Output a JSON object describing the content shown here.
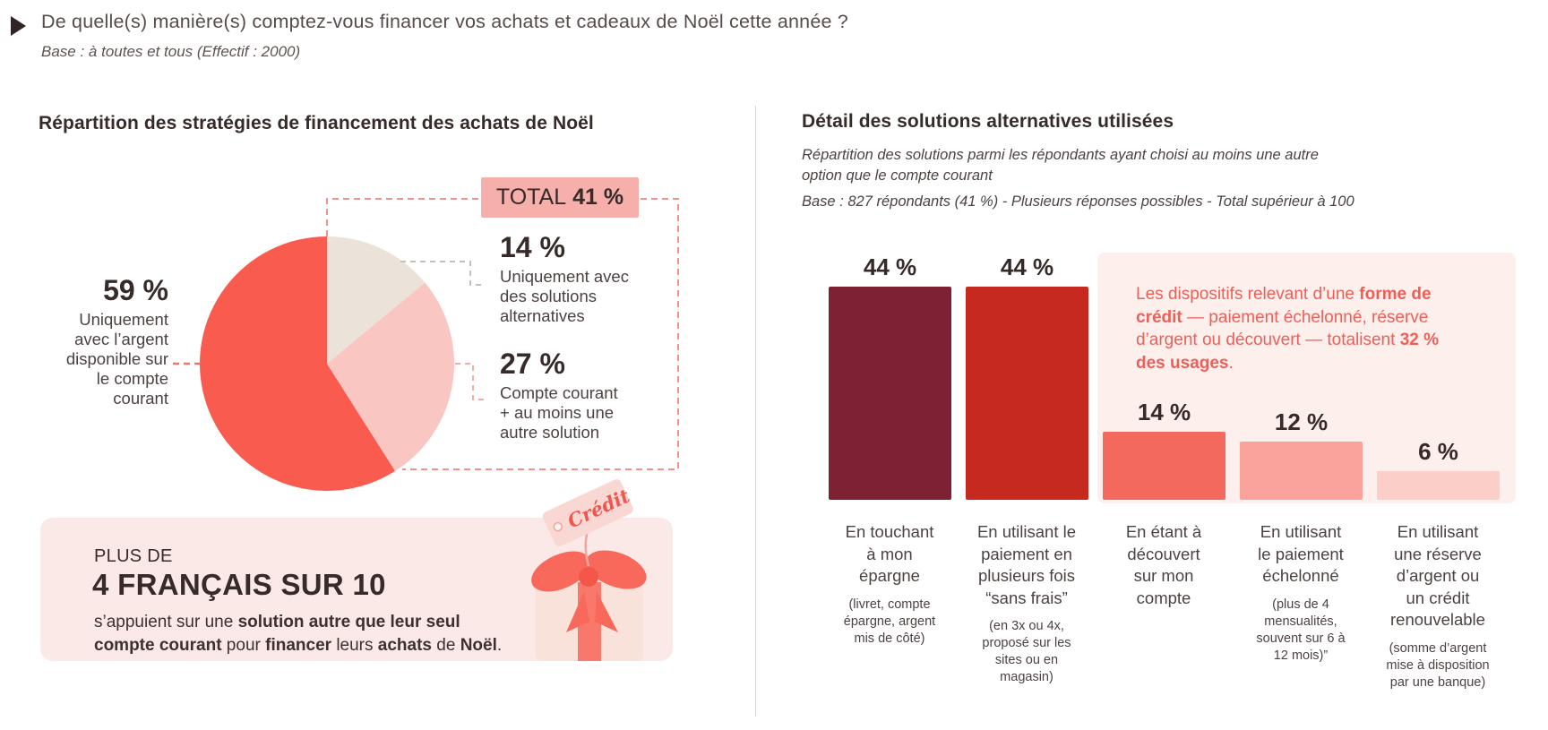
{
  "header": {
    "question": "De quelle(s) manière(s) comptez-vous financer vos achats et cadeaux de Noël cette année ?",
    "base": "Base : à toutes et tous (Effectif : 2000)"
  },
  "left_panel": {
    "title": "Répartition des stratégies de financement des achats de Noël",
    "total_label": "TOTAL",
    "total_value": "41 %",
    "slices": [
      {
        "value": "59 %",
        "label": "Uniquement\navec l’argent\ndisponible sur\nle compte\ncourant"
      },
      {
        "value": "14 %",
        "label": "Uniquement avec\ndes solutions\nalternatives"
      },
      {
        "value": "27 %",
        "label": "Compte courant\n+ au moins une\nautre solution"
      }
    ],
    "highlight": {
      "line1": "PLUS DE",
      "line2": "4 FRANÇAIS SUR 10",
      "body": [
        {
          "t": "s’appuient sur une "
        },
        {
          "t": "solution autre que leur seul\ncompte courant",
          "b": true
        },
        {
          "t": " pour "
        },
        {
          "t": "financer",
          "b": true
        },
        {
          "t": " leurs "
        },
        {
          "t": "achats",
          "b": true
        },
        {
          "t": " de "
        },
        {
          "t": "Noël",
          "b": true
        },
        {
          "t": "."
        }
      ]
    },
    "gift_tag": "Crédit"
  },
  "right_panel": {
    "title": "Détail des solutions alternatives utilisées",
    "subtitle": "Répartition des solutions parmi les répondants ayant choisi au moins une autre\noption que le compte courant",
    "base": "Base : 827 répondants (41 %) - Plusieurs réponses possibles - Total supérieur à 100",
    "callout": [
      {
        "t": "Les dispositifs relevant d’une "
      },
      {
        "t": "forme de\ncrédit",
        "b": true
      },
      {
        "t": " — paiement échelonné, réserve\nd’argent ou découvert — totalisent "
      },
      {
        "t": "32 %\ndes usages",
        "b": true
      },
      {
        "t": "."
      }
    ],
    "bars": [
      {
        "value": "44 %",
        "pct": 44,
        "color": "#7e2134",
        "label": "En touchant\nà mon\népargne",
        "note": "(livret, compte\népargne, argent\nmis de côté)"
      },
      {
        "value": "44 %",
        "pct": 44,
        "color": "#c62a1e",
        "label": "En utilisant le\npaiement en\nplusieurs fois\n“sans frais”",
        "note": "(en 3x ou 4x,\nproposé sur les\nsites ou en\nmagasin)"
      },
      {
        "value": "14 %",
        "pct": 14,
        "color": "#f4695e",
        "label": "En étant à\ndécouvert\nsur mon\ncompte",
        "note": ""
      },
      {
        "value": "12 %",
        "pct": 12,
        "color": "#f9a39c",
        "label": "En utilisant\nle paiement\néchelonné",
        "note": "(plus de 4\nmensualités,\nsouvent sur 6 à\n12 mois)”"
      },
      {
        "value": "6 %",
        "pct": 6,
        "color": "#fbcfc8",
        "label": "En utilisant\nune réserve\nd’argent ou\nun crédit\nrenouvelable",
        "note": "(somme d’argent\nmise à disposition\npar une banque)"
      }
    ]
  },
  "palette": {
    "pie_red": "#f95b4e",
    "pie_beige": "#ebe3d9",
    "pie_pink": "#fac6c2",
    "total_box_bg": "#f7afac",
    "highlight_bg": "#fbe9e7",
    "panel_pink": "#fcefec",
    "callout_red": "#ee5f58",
    "dash_red": "#f2756c",
    "dash_grey": "#c8bfb8",
    "text_dark": "#362b29"
  },
  "chart_data": [
    {
      "type": "pie",
      "title": "Répartition des stratégies de financement des achats de Noël",
      "labels": [
        "Uniquement avec l’argent disponible sur le compte courant",
        "Uniquement avec des solutions alternatives",
        "Compte courant + au moins une autre solution"
      ],
      "values": [
        59,
        14,
        27
      ],
      "colors": [
        "#f95b4e",
        "#ebe3d9",
        "#fac6c2"
      ],
      "annotation": "TOTAL 41 % (regroupe 14 % + 27 %)",
      "start_angle_deg": 0,
      "direction": "clockwise",
      "order_from_top": [
        "14",
        "27",
        "59"
      ]
    },
    {
      "type": "bar",
      "title": "Détail des solutions alternatives utilisées",
      "categories": [
        "En touchant à mon épargne",
        "En utilisant le paiement en plusieurs fois “sans frais”",
        "En étant à découvert sur mon compte",
        "En utilisant le paiement échelonné",
        "En utilisant une réserve d’argent ou un crédit renouvelable"
      ],
      "values": [
        44,
        44,
        14,
        12,
        6
      ],
      "unit": "%",
      "colors": [
        "#7e2134",
        "#c62a1e",
        "#f4695e",
        "#f9a39c",
        "#fbcfc8"
      ],
      "ylim": [
        0,
        44
      ],
      "grid": false,
      "annotation": "Les dispositifs relevant d’une forme de crédit — paiement échelonné, réserve d’argent ou découvert — totalisent 32 % des usages."
    }
  ]
}
